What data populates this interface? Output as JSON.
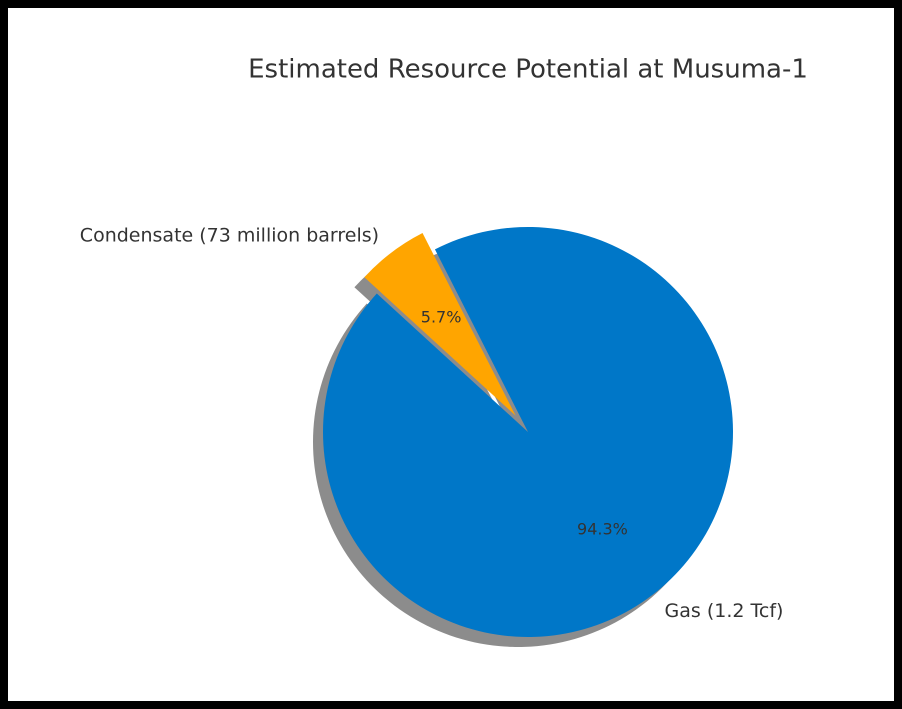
{
  "chart_data": {
    "type": "pie",
    "title": "Estimated Resource Potential at Musuma-1",
    "categories": [
      "Condensate (73 million barrels)",
      "Gas (1.2 Tcf)"
    ],
    "values": [
      5.7,
      94.3
    ],
    "value_labels": [
      "5.7%",
      "94.3%"
    ],
    "colors": [
      "#ffa500",
      "#0077c8"
    ],
    "shadow": true
  }
}
